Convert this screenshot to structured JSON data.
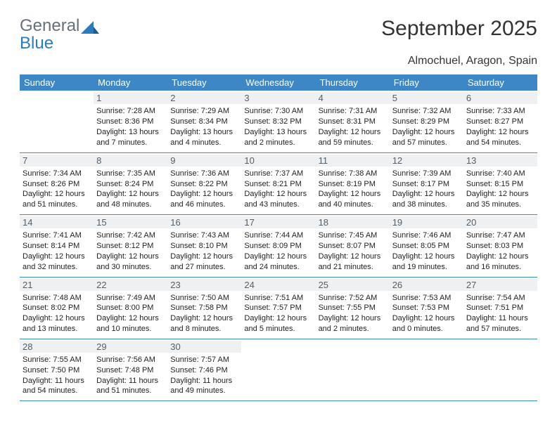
{
  "brand": {
    "line1": "General",
    "line2": "Blue"
  },
  "logo_color": "#2b7bbf",
  "title": "September 2025",
  "subtitle": "Almochuel, Aragon, Spain",
  "header_bg": "#3d87c7",
  "header_fg": "#ffffff",
  "daynum_bg": "#eef0f2",
  "border_color": "#3d87c7",
  "columns": [
    "Sunday",
    "Monday",
    "Tuesday",
    "Wednesday",
    "Thursday",
    "Friday",
    "Saturday"
  ],
  "weeks": [
    [
      {
        "empty": true
      },
      {
        "num": "1",
        "sunrise": "7:28 AM",
        "sunset": "8:36 PM",
        "daylight": "13 hours and 7 minutes."
      },
      {
        "num": "2",
        "sunrise": "7:29 AM",
        "sunset": "8:34 PM",
        "daylight": "13 hours and 4 minutes."
      },
      {
        "num": "3",
        "sunrise": "7:30 AM",
        "sunset": "8:32 PM",
        "daylight": "13 hours and 2 minutes."
      },
      {
        "num": "4",
        "sunrise": "7:31 AM",
        "sunset": "8:31 PM",
        "daylight": "12 hours and 59 minutes."
      },
      {
        "num": "5",
        "sunrise": "7:32 AM",
        "sunset": "8:29 PM",
        "daylight": "12 hours and 57 minutes."
      },
      {
        "num": "6",
        "sunrise": "7:33 AM",
        "sunset": "8:27 PM",
        "daylight": "12 hours and 54 minutes."
      }
    ],
    [
      {
        "num": "7",
        "sunrise": "7:34 AM",
        "sunset": "8:26 PM",
        "daylight": "12 hours and 51 minutes."
      },
      {
        "num": "8",
        "sunrise": "7:35 AM",
        "sunset": "8:24 PM",
        "daylight": "12 hours and 48 minutes."
      },
      {
        "num": "9",
        "sunrise": "7:36 AM",
        "sunset": "8:22 PM",
        "daylight": "12 hours and 46 minutes."
      },
      {
        "num": "10",
        "sunrise": "7:37 AM",
        "sunset": "8:21 PM",
        "daylight": "12 hours and 43 minutes."
      },
      {
        "num": "11",
        "sunrise": "7:38 AM",
        "sunset": "8:19 PM",
        "daylight": "12 hours and 40 minutes."
      },
      {
        "num": "12",
        "sunrise": "7:39 AM",
        "sunset": "8:17 PM",
        "daylight": "12 hours and 38 minutes."
      },
      {
        "num": "13",
        "sunrise": "7:40 AM",
        "sunset": "8:15 PM",
        "daylight": "12 hours and 35 minutes."
      }
    ],
    [
      {
        "num": "14",
        "sunrise": "7:41 AM",
        "sunset": "8:14 PM",
        "daylight": "12 hours and 32 minutes."
      },
      {
        "num": "15",
        "sunrise": "7:42 AM",
        "sunset": "8:12 PM",
        "daylight": "12 hours and 30 minutes."
      },
      {
        "num": "16",
        "sunrise": "7:43 AM",
        "sunset": "8:10 PM",
        "daylight": "12 hours and 27 minutes."
      },
      {
        "num": "17",
        "sunrise": "7:44 AM",
        "sunset": "8:09 PM",
        "daylight": "12 hours and 24 minutes."
      },
      {
        "num": "18",
        "sunrise": "7:45 AM",
        "sunset": "8:07 PM",
        "daylight": "12 hours and 21 minutes."
      },
      {
        "num": "19",
        "sunrise": "7:46 AM",
        "sunset": "8:05 PM",
        "daylight": "12 hours and 19 minutes."
      },
      {
        "num": "20",
        "sunrise": "7:47 AM",
        "sunset": "8:03 PM",
        "daylight": "12 hours and 16 minutes."
      }
    ],
    [
      {
        "num": "21",
        "sunrise": "7:48 AM",
        "sunset": "8:02 PM",
        "daylight": "12 hours and 13 minutes."
      },
      {
        "num": "22",
        "sunrise": "7:49 AM",
        "sunset": "8:00 PM",
        "daylight": "12 hours and 10 minutes."
      },
      {
        "num": "23",
        "sunrise": "7:50 AM",
        "sunset": "7:58 PM",
        "daylight": "12 hours and 8 minutes."
      },
      {
        "num": "24",
        "sunrise": "7:51 AM",
        "sunset": "7:57 PM",
        "daylight": "12 hours and 5 minutes."
      },
      {
        "num": "25",
        "sunrise": "7:52 AM",
        "sunset": "7:55 PM",
        "daylight": "12 hours and 2 minutes."
      },
      {
        "num": "26",
        "sunrise": "7:53 AM",
        "sunset": "7:53 PM",
        "daylight": "12 hours and 0 minutes."
      },
      {
        "num": "27",
        "sunrise": "7:54 AM",
        "sunset": "7:51 PM",
        "daylight": "11 hours and 57 minutes."
      }
    ],
    [
      {
        "num": "28",
        "sunrise": "7:55 AM",
        "sunset": "7:50 PM",
        "daylight": "11 hours and 54 minutes."
      },
      {
        "num": "29",
        "sunrise": "7:56 AM",
        "sunset": "7:48 PM",
        "daylight": "11 hours and 51 minutes."
      },
      {
        "num": "30",
        "sunrise": "7:57 AM",
        "sunset": "7:46 PM",
        "daylight": "11 hours and 49 minutes."
      },
      {
        "empty": true
      },
      {
        "empty": true
      },
      {
        "empty": true
      },
      {
        "empty": true
      }
    ]
  ],
  "labels": {
    "sunrise": "Sunrise:",
    "sunset": "Sunset:",
    "daylight": "Daylight:"
  }
}
